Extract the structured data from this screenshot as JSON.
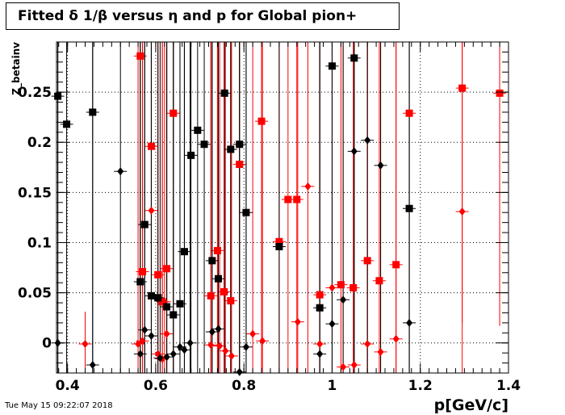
{
  "chart_data": {
    "type": "scatter",
    "title": "Fitted δ 1/β versus η and p for Global pion+",
    "xlabel": "p[GeV/c]",
    "ylabel": "Z_betainv",
    "xlim": [
      0.375,
      1.4
    ],
    "ylim": [
      -0.03,
      0.3
    ],
    "x_ticks": [
      "0.4",
      "0.6",
      "0.8",
      "1",
      "1.2",
      "1.4"
    ],
    "y_ticks": [
      "0",
      "0.05",
      "0.1",
      "0.15",
      "0.2",
      "0.25"
    ],
    "grid": true,
    "series": [
      {
        "color": "#ff0000",
        "marker": "square",
        "points": [
          {
            "x": 0.565,
            "y": 0.286,
            "ylo": -0.03,
            "yhi": 0.3
          },
          {
            "x": 0.59,
            "y": 0.196,
            "ylo": -0.03,
            "yhi": 0.3
          },
          {
            "x": 0.64,
            "y": 0.229,
            "ylo": -0.03,
            "yhi": 0.3
          },
          {
            "x": 0.57,
            "y": 0.071,
            "ylo": -0.03,
            "yhi": 0.3
          },
          {
            "x": 0.605,
            "y": 0.068,
            "ylo": -0.03,
            "yhi": 0.3
          },
          {
            "x": 0.625,
            "y": 0.074,
            "ylo": -0.03,
            "yhi": 0.3
          },
          {
            "x": 0.615,
            "y": 0.041,
            "ylo": -0.03,
            "yhi": 0.3
          },
          {
            "x": 0.725,
            "y": 0.047,
            "ylo": -0.03,
            "yhi": 0.3
          },
          {
            "x": 0.74,
            "y": 0.092,
            "ylo": -0.03,
            "yhi": 0.3
          },
          {
            "x": 0.755,
            "y": 0.051,
            "ylo": -0.03,
            "yhi": 0.3
          },
          {
            "x": 0.77,
            "y": 0.042,
            "ylo": -0.03,
            "yhi": 0.3
          },
          {
            "x": 0.79,
            "y": 0.178,
            "ylo": -0.03,
            "yhi": 0.3
          },
          {
            "x": 0.84,
            "y": 0.221,
            "ylo": -0.03,
            "yhi": 0.3
          },
          {
            "x": 0.88,
            "y": 0.101,
            "ylo": -0.03,
            "yhi": 0.3
          },
          {
            "x": 0.9,
            "y": 0.143,
            "ylo": -0.03,
            "yhi": 0.3
          },
          {
            "x": 0.92,
            "y": 0.143,
            "ylo": -0.03,
            "yhi": 0.3
          },
          {
            "x": 0.972,
            "y": 0.048,
            "ylo": -0.03,
            "yhi": 0.3
          },
          {
            "x": 1.02,
            "y": 0.058,
            "ylo": -0.03,
            "yhi": 0.3
          },
          {
            "x": 1.048,
            "y": 0.055,
            "ylo": -0.03,
            "yhi": 0.3
          },
          {
            "x": 1.08,
            "y": 0.082,
            "ylo": -0.03,
            "yhi": 0.3
          },
          {
            "x": 1.107,
            "y": 0.062,
            "ylo": -0.03,
            "yhi": 0.3
          },
          {
            "x": 1.145,
            "y": 0.078,
            "ylo": -0.03,
            "yhi": 0.3
          },
          {
            "x": 1.175,
            "y": 0.229,
            "ylo": -0.03,
            "yhi": 0.3
          },
          {
            "x": 1.295,
            "y": 0.254,
            "ylo": 0.02,
            "yhi": 0.3
          },
          {
            "x": 1.38,
            "y": 0.249,
            "ylo": 0.017,
            "yhi": 0.3
          }
        ]
      },
      {
        "color": "#ff0000",
        "marker": "diamond",
        "points": [
          {
            "x": 0.44,
            "y": -0.001,
            "ylo": -0.03,
            "yhi": 0.031
          },
          {
            "x": 0.56,
            "y": -0.001,
            "ylo": -0.03,
            "yhi": 0.3
          },
          {
            "x": 0.57,
            "y": 0.002,
            "ylo": -0.03,
            "yhi": 0.3
          },
          {
            "x": 0.59,
            "y": 0.132,
            "ylo": -0.03,
            "yhi": 0.3
          },
          {
            "x": 0.605,
            "y": -0.011,
            "ylo": -0.03,
            "yhi": 0.3
          },
          {
            "x": 0.615,
            "y": -0.016,
            "ylo": -0.03,
            "yhi": 0.3
          },
          {
            "x": 0.625,
            "y": 0.009,
            "ylo": -0.03,
            "yhi": 0.3
          },
          {
            "x": 0.62,
            "y": 0.041,
            "ylo": -0.03,
            "yhi": 0.3
          },
          {
            "x": 0.725,
            "y": -0.002,
            "ylo": -0.03,
            "yhi": 0.3
          },
          {
            "x": 0.745,
            "y": -0.003,
            "ylo": -0.03,
            "yhi": 0.3
          },
          {
            "x": 0.758,
            "y": -0.008,
            "ylo": -0.03,
            "yhi": 0.3
          },
          {
            "x": 0.772,
            "y": -0.013,
            "ylo": -0.03,
            "yhi": 0.3
          },
          {
            "x": 0.82,
            "y": 0.009,
            "ylo": -0.03,
            "yhi": 0.3
          },
          {
            "x": 0.842,
            "y": 0.002,
            "ylo": -0.03,
            "yhi": 0.3
          },
          {
            "x": 0.922,
            "y": 0.021,
            "ylo": -0.03,
            "yhi": 0.3
          },
          {
            "x": 0.945,
            "y": 0.156,
            "ylo": -0.03,
            "yhi": 0.3
          },
          {
            "x": 0.972,
            "y": -0.001,
            "ylo": -0.03,
            "yhi": 0.3
          },
          {
            "x": 1.0,
            "y": 0.055,
            "ylo": -0.03,
            "yhi": 0.3
          },
          {
            "x": 1.025,
            "y": -0.024,
            "ylo": -0.03,
            "yhi": 0.3
          },
          {
            "x": 1.05,
            "y": -0.022,
            "ylo": -0.03,
            "yhi": 0.3
          },
          {
            "x": 1.08,
            "y": -0.001,
            "ylo": -0.03,
            "yhi": 0.3
          },
          {
            "x": 1.11,
            "y": -0.009,
            "ylo": -0.03,
            "yhi": 0.3
          },
          {
            "x": 1.145,
            "y": 0.004,
            "ylo": -0.03,
            "yhi": 0.3
          },
          {
            "x": 1.295,
            "y": 0.131,
            "ylo": -0.03,
            "yhi": 0.3
          }
        ]
      },
      {
        "color": "#000000",
        "marker": "square",
        "points": [
          {
            "x": 0.378,
            "y": 0.246,
            "ylo": -0.03,
            "yhi": 0.3
          },
          {
            "x": 0.398,
            "y": 0.218,
            "ylo": -0.03,
            "yhi": 0.3
          },
          {
            "x": 0.457,
            "y": 0.23,
            "ylo": -0.03,
            "yhi": 0.3
          },
          {
            "x": 0.565,
            "y": 0.061,
            "ylo": -0.03,
            "yhi": 0.3
          },
          {
            "x": 0.575,
            "y": 0.118,
            "ylo": -0.03,
            "yhi": 0.3
          },
          {
            "x": 0.59,
            "y": 0.047,
            "ylo": -0.03,
            "yhi": 0.3
          },
          {
            "x": 0.605,
            "y": 0.045,
            "ylo": -0.03,
            "yhi": 0.3
          },
          {
            "x": 0.625,
            "y": 0.036,
            "ylo": -0.03,
            "yhi": 0.3
          },
          {
            "x": 0.64,
            "y": 0.028,
            "ylo": -0.03,
            "yhi": 0.3
          },
          {
            "x": 0.655,
            "y": 0.039,
            "ylo": -0.03,
            "yhi": 0.3
          },
          {
            "x": 0.665,
            "y": 0.091,
            "ylo": -0.03,
            "yhi": 0.3
          },
          {
            "x": 0.68,
            "y": 0.187,
            "ylo": -0.03,
            "yhi": 0.3
          },
          {
            "x": 0.695,
            "y": 0.212,
            "ylo": -0.03,
            "yhi": 0.3
          },
          {
            "x": 0.71,
            "y": 0.198,
            "ylo": -0.03,
            "yhi": 0.3
          },
          {
            "x": 0.728,
            "y": 0.082,
            "ylo": -0.03,
            "yhi": 0.3
          },
          {
            "x": 0.742,
            "y": 0.064,
            "ylo": -0.03,
            "yhi": 0.3
          },
          {
            "x": 0.756,
            "y": 0.249,
            "ylo": -0.03,
            "yhi": 0.3
          },
          {
            "x": 0.77,
            "y": 0.193,
            "ylo": -0.03,
            "yhi": 0.3
          },
          {
            "x": 0.79,
            "y": 0.198,
            "ylo": -0.03,
            "yhi": 0.3
          },
          {
            "x": 0.805,
            "y": 0.13,
            "ylo": -0.03,
            "yhi": 0.3
          },
          {
            "x": 0.88,
            "y": 0.096,
            "ylo": -0.03,
            "yhi": 0.3
          },
          {
            "x": 0.972,
            "y": 0.035,
            "ylo": -0.03,
            "yhi": 0.3
          },
          {
            "x": 1.0,
            "y": 0.276,
            "ylo": -0.03,
            "yhi": 0.3
          },
          {
            "x": 1.05,
            "y": 0.284,
            "ylo": -0.03,
            "yhi": 0.3
          },
          {
            "x": 1.175,
            "y": 0.134,
            "ylo": -0.03,
            "yhi": 0.3
          }
        ]
      },
      {
        "color": "#000000",
        "marker": "diamond",
        "points": [
          {
            "x": 0.378,
            "y": 0.0,
            "ylo": -0.03,
            "yhi": 0.3
          },
          {
            "x": 0.457,
            "y": -0.022,
            "ylo": -0.03,
            "yhi": 0.3
          },
          {
            "x": 0.52,
            "y": 0.171,
            "ylo": -0.03,
            "yhi": 0.3
          },
          {
            "x": 0.565,
            "y": -0.011,
            "ylo": -0.03,
            "yhi": 0.3
          },
          {
            "x": 0.575,
            "y": 0.013,
            "ylo": -0.03,
            "yhi": 0.3
          },
          {
            "x": 0.59,
            "y": 0.007,
            "ylo": -0.03,
            "yhi": 0.3
          },
          {
            "x": 0.61,
            "y": -0.015,
            "ylo": -0.03,
            "yhi": 0.3
          },
          {
            "x": 0.625,
            "y": -0.014,
            "ylo": -0.03,
            "yhi": 0.3
          },
          {
            "x": 0.64,
            "y": -0.011,
            "ylo": -0.03,
            "yhi": 0.3
          },
          {
            "x": 0.655,
            "y": -0.004,
            "ylo": -0.03,
            "yhi": 0.3
          },
          {
            "x": 0.665,
            "y": -0.007,
            "ylo": -0.03,
            "yhi": 0.3
          },
          {
            "x": 0.678,
            "y": 0.0,
            "ylo": -0.03,
            "yhi": 0.3
          },
          {
            "x": 0.728,
            "y": 0.011,
            "ylo": -0.03,
            "yhi": 0.3
          },
          {
            "x": 0.742,
            "y": 0.014,
            "ylo": -0.03,
            "yhi": 0.3
          },
          {
            "x": 0.79,
            "y": -0.029,
            "ylo": -0.03,
            "yhi": 0.3
          },
          {
            "x": 0.805,
            "y": -0.004,
            "ylo": -0.03,
            "yhi": 0.3
          },
          {
            "x": 0.972,
            "y": -0.011,
            "ylo": -0.03,
            "yhi": 0.3
          },
          {
            "x": 1.0,
            "y": 0.019,
            "ylo": -0.03,
            "yhi": 0.3
          },
          {
            "x": 1.025,
            "y": 0.043,
            "ylo": -0.03,
            "yhi": 0.3
          },
          {
            "x": 1.05,
            "y": 0.191,
            "ylo": -0.03,
            "yhi": 0.3
          },
          {
            "x": 1.08,
            "y": 0.202,
            "ylo": -0.03,
            "yhi": 0.3
          },
          {
            "x": 1.11,
            "y": 0.177,
            "ylo": -0.03,
            "yhi": 0.3
          },
          {
            "x": 1.175,
            "y": 0.02,
            "ylo": -0.03,
            "yhi": 0.3
          }
        ]
      }
    ]
  },
  "timestamp": "Tue May 15 09:22:07 2018"
}
